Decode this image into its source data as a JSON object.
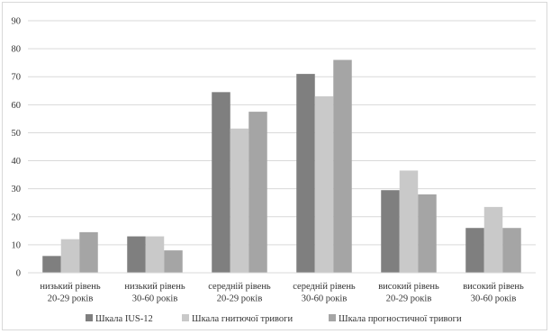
{
  "chart_data": {
    "type": "bar",
    "categories": [
      [
        "низький рівень",
        "20-29 років"
      ],
      [
        "низький рівень",
        "30-60 років"
      ],
      [
        "середній рівень",
        "20-29 років"
      ],
      [
        "середній рівень",
        "30-60 років"
      ],
      [
        "високий рівень",
        "20-29 років"
      ],
      [
        "високий рівень",
        "30-60 років"
      ]
    ],
    "series": [
      {
        "name": "Шкала IUS-12",
        "color": "#7f7f7f",
        "values": [
          6,
          13,
          64.5,
          71,
          29.5,
          16
        ]
      },
      {
        "name": "Шкала гнитючої тривоги",
        "color": "#c9c9c9",
        "values": [
          12,
          13,
          51.5,
          63,
          36.5,
          23.5
        ]
      },
      {
        "name": "Шкала прогностичної тривоги",
        "color": "#a5a5a5",
        "values": [
          14.5,
          8,
          57.5,
          76,
          28,
          16
        ]
      }
    ],
    "ylim": [
      0,
      90
    ],
    "yticks": [
      "0",
      "10",
      "20",
      "30",
      "40",
      "50",
      "60",
      "70",
      "80",
      "90"
    ],
    "grid": true,
    "legend_position": "bottom",
    "title": "",
    "xlabel": "",
    "ylabel": ""
  }
}
